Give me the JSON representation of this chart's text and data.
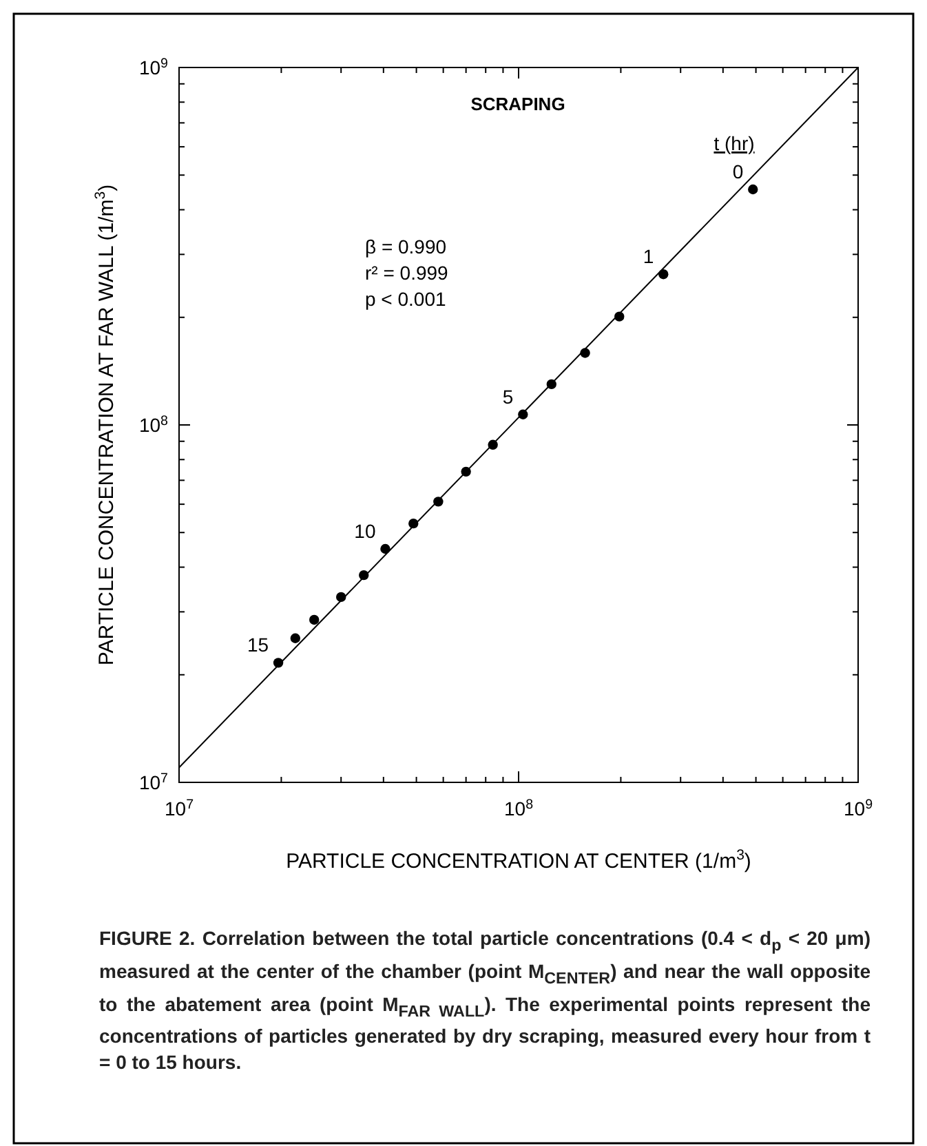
{
  "chart_data": {
    "type": "scatter",
    "xlabel": "PARTICLE CONCENTRATION AT CENTER (1/m$^{3}$)",
    "ylabel": "PARTICLE CONCENTRATION AT FAR WALL (1/m$^{3}$)",
    "log": "xy",
    "grid": false,
    "xlim": [
      10000000,
      1000000000
    ],
    "ylim": [
      10000000,
      1000000000
    ],
    "xticks": [
      {
        "value": 10000000,
        "label": "10$^{7}$"
      },
      {
        "value": 20000000,
        "label": null
      },
      {
        "value": 30000000,
        "label": null
      },
      {
        "value": 40000000,
        "label": null
      },
      {
        "value": 50000000,
        "label": null
      },
      {
        "value": 60000000,
        "label": null
      },
      {
        "value": 70000000,
        "label": null
      },
      {
        "value": 80000000,
        "label": null
      },
      {
        "value": 90000000,
        "label": null
      },
      {
        "value": 100000000,
        "label": "10$^{8}$"
      },
      {
        "value": 200000000,
        "label": null
      },
      {
        "value": 300000000,
        "label": null
      },
      {
        "value": 400000000,
        "label": null
      },
      {
        "value": 500000000,
        "label": null
      },
      {
        "value": 600000000,
        "label": null
      },
      {
        "value": 700000000,
        "label": null
      },
      {
        "value": 800000000,
        "label": null
      },
      {
        "value": 900000000,
        "label": null
      },
      {
        "value": 1000000000,
        "label": "10$^{9}$"
      }
    ],
    "yticks": [
      {
        "value": 10000000,
        "label": "10$^{7}$"
      },
      {
        "value": 20000000,
        "label": null
      },
      {
        "value": 30000000,
        "label": null
      },
      {
        "value": 40000000,
        "label": null
      },
      {
        "value": 50000000,
        "label": null
      },
      {
        "value": 60000000,
        "label": null
      },
      {
        "value": 70000000,
        "label": null
      },
      {
        "value": 80000000,
        "label": null
      },
      {
        "value": 90000000,
        "label": null
      },
      {
        "value": 100000000,
        "label": "10$^{8}$"
      },
      {
        "value": 200000000,
        "label": null
      },
      {
        "value": 300000000,
        "label": null
      },
      {
        "value": 400000000,
        "label": null
      },
      {
        "value": 500000000,
        "label": null
      },
      {
        "value": 600000000,
        "label": null
      },
      {
        "value": 700000000,
        "label": null
      },
      {
        "value": 800000000,
        "label": null
      },
      {
        "value": 900000000,
        "label": null
      },
      {
        "value": 1000000000,
        "label": "10$^{9}$"
      }
    ],
    "series": [
      {
        "type": "line",
        "marker": "none",
        "color": "#000000",
        "x": [
          10000000,
          1000000000
        ],
        "values": [
          11000000,
          1000000000
        ]
      },
      {
        "marker": "circle",
        "color": "#000000",
        "x": [
          490000000,
          267000000,
          198000000,
          157000000,
          125000000,
          103000000,
          84000000,
          70000000,
          58000000,
          49000000,
          40500000,
          35000000,
          30000000,
          25000000,
          22000000,
          19600000
        ],
        "values": [
          456000000,
          264000000,
          201000000,
          159000000,
          130000000,
          107000000,
          88000000,
          74000000,
          61000000,
          53000000,
          45000000,
          38000000,
          33000000,
          28500000,
          25300000,
          21600000
        ]
      }
    ],
    "annotations": [
      "SCRAPING",
      "t (hr)",
      "β = 0.990",
      "r² = 0.999",
      "p < 0.001",
      "FIGURE 2.   Correlation between the total particle concentrations (0.4 < d$_{p}$ < 20 μm) measured at the center of the chamber (point M$_{CENTER}$) and near the wall opposite to the abatement area (point M$_{FAR WALL}$). The experimental points represent the concentrations of particles generated by dry scraping, measured every hour from t = 0 to 15 hours.",
      {
        "text": "0",
        "x": 490000000,
        "y": 456000000
      },
      {
        "text": "1",
        "x": 267000000,
        "y": 264000000
      },
      {
        "text": "5",
        "x": 103000000,
        "y": 107000000
      },
      {
        "text": "10",
        "x": 40500000,
        "y": 45000000
      },
      {
        "text": "15",
        "x": 19600000,
        "y": 21600000
      }
    ]
  }
}
